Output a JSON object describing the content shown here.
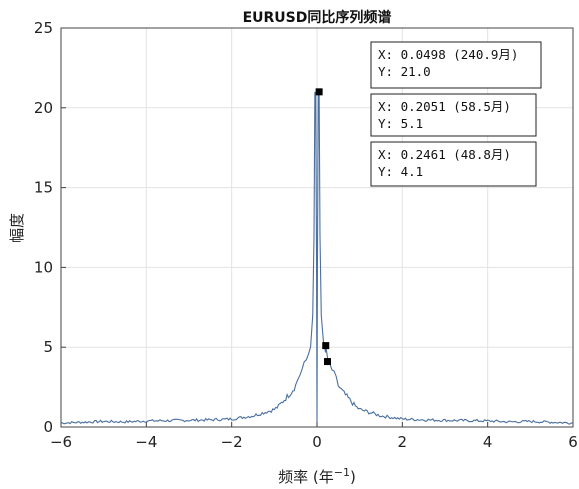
{
  "chart_data": {
    "type": "line",
    "title": "EURUSD同比序列频谱",
    "xlabel": "频率 (年",
    "xlabel_sup": "−1",
    "xlabel_close": ")",
    "ylabel": "幅度",
    "xlim": [
      -6,
      6
    ],
    "ylim": [
      0,
      25
    ],
    "xticks": [
      -6,
      -4,
      -2,
      0,
      2,
      4,
      6
    ],
    "xtick_labels": [
      "−6",
      "−4",
      "−2",
      "0",
      "2",
      "4",
      "6"
    ],
    "yticks": [
      0,
      5,
      10,
      15,
      20,
      25
    ],
    "ytick_labels": [
      "0",
      "5",
      "10",
      "15",
      "20",
      "25"
    ],
    "grid": true,
    "line_color": "#4a6fa0",
    "marker_color": "#000000",
    "series": [
      {
        "x": [
          -6.0,
          -5.5,
          -5.0,
          -4.5,
          -4.0,
          -3.5,
          -3.0,
          -2.5,
          -2.0,
          -1.75,
          -1.5,
          -1.25,
          -1.0,
          -0.9,
          -0.8,
          -0.7,
          -0.6,
          -0.5,
          -0.45,
          -0.4,
          -0.35,
          -0.3,
          -0.25,
          -0.2,
          -0.15,
          -0.1,
          -0.07,
          -0.05,
          -0.03,
          -0.01,
          0.0,
          0.01,
          0.03,
          0.05,
          0.07,
          0.1,
          0.15,
          0.2,
          0.2051,
          0.25,
          0.3,
          0.35,
          0.4,
          0.45,
          0.5,
          0.6,
          0.7,
          0.8,
          0.9,
          1.0,
          1.25,
          1.5,
          1.75,
          2.0,
          2.5,
          3.0,
          3.5,
          4.0,
          4.5,
          5.0,
          5.5,
          6.0
        ],
        "y": [
          0.25,
          0.3,
          0.35,
          0.32,
          0.38,
          0.4,
          0.42,
          0.45,
          0.5,
          0.6,
          0.7,
          0.9,
          1.1,
          1.3,
          1.6,
          1.9,
          2.2,
          2.6,
          3.0,
          3.3,
          3.6,
          3.9,
          4.2,
          4.6,
          5.2,
          7.0,
          12.0,
          21.0,
          20.8,
          10.0,
          0.0,
          10.0,
          20.8,
          21.0,
          12.0,
          7.0,
          5.2,
          4.6,
          5.1,
          4.1,
          3.9,
          3.6,
          3.3,
          3.0,
          2.6,
          2.2,
          1.9,
          1.6,
          1.3,
          1.1,
          0.9,
          0.7,
          0.6,
          0.5,
          0.45,
          0.42,
          0.4,
          0.38,
          0.32,
          0.35,
          0.3,
          0.25
        ]
      }
    ],
    "markers": [
      {
        "x": 0.0498,
        "y": 21.0
      },
      {
        "x": 0.2051,
        "y": 5.1
      },
      {
        "x": 0.2461,
        "y": 4.1
      }
    ],
    "datatips": [
      {
        "line1": "X: 0.0498 (240.9月)",
        "line2": "Y: 21.0"
      },
      {
        "line1": "X: 0.2051 (58.5月)",
        "line2": "Y: 5.1"
      },
      {
        "line1": "X: 0.2461 (48.8月)",
        "line2": "Y: 4.1"
      }
    ]
  }
}
